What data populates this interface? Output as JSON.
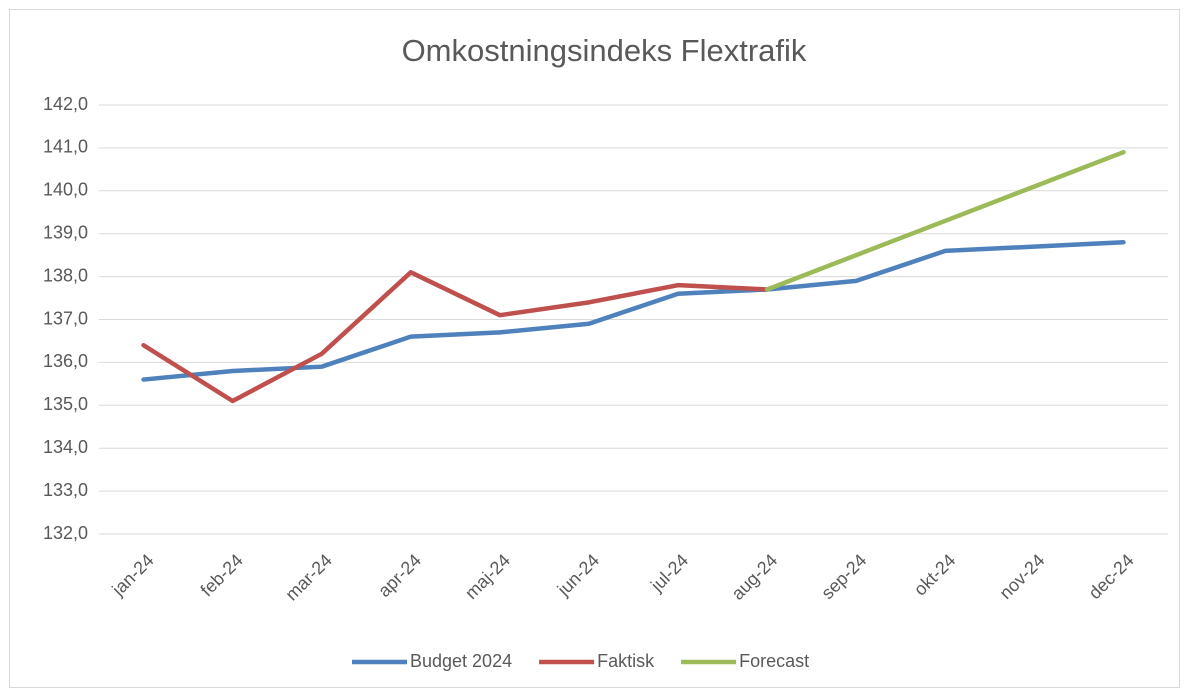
{
  "chart_data": {
    "type": "line",
    "title": "Omkostningsindeks Flextrafik",
    "categories": [
      "jan-24",
      "feb-24",
      "mar-24",
      "apr-24",
      "maj-24",
      "jun-24",
      "jul-24",
      "aug-24",
      "sep-24",
      "okt-24",
      "nov-24",
      "dec-24"
    ],
    "series": [
      {
        "name": "Budget 2024",
        "color": "#4f81bd",
        "values": [
          135.6,
          135.8,
          135.9,
          136.6,
          136.7,
          136.9,
          137.6,
          137.7,
          137.9,
          138.6,
          138.7,
          138.8
        ]
      },
      {
        "name": "Faktisk",
        "color": "#c0504d",
        "values": [
          136.4,
          135.1,
          136.2,
          138.1,
          137.1,
          137.4,
          137.8,
          137.7,
          null,
          null,
          null,
          null
        ]
      },
      {
        "name": "Forecast",
        "color": "#9bbb59",
        "values": [
          null,
          null,
          null,
          null,
          null,
          null,
          null,
          137.7,
          138.5,
          139.3,
          140.1,
          140.9
        ]
      }
    ],
    "ylim": [
      132,
      142
    ],
    "yticks": [
      {
        "value": 132,
        "label": "132,0"
      },
      {
        "value": 133,
        "label": "133,0"
      },
      {
        "value": 134,
        "label": "134,0"
      },
      {
        "value": 135,
        "label": "135,0"
      },
      {
        "value": 136,
        "label": "136,0"
      },
      {
        "value": 137,
        "label": "137,0"
      },
      {
        "value": 138,
        "label": "138,0"
      },
      {
        "value": 139,
        "label": "139,0"
      },
      {
        "value": 140,
        "label": "140,0"
      },
      {
        "value": 141,
        "label": "141,0"
      },
      {
        "value": 142,
        "label": "142,0"
      }
    ],
    "grid": true,
    "legend": "bottom"
  }
}
